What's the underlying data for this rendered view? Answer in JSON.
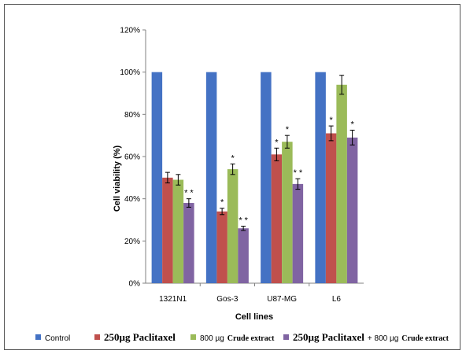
{
  "chart_data": {
    "type": "bar",
    "title": "",
    "xlabel": "Cell lines",
    "ylabel": "Cell viability (%)",
    "ylim": [
      0,
      120
    ],
    "yticks": [
      "0%",
      "20%",
      "40%",
      "60%",
      "80%",
      "100%",
      "120%"
    ],
    "grid": false,
    "legend_position": "bottom",
    "categories": [
      "1321N1",
      "Gos-3",
      "U87-MG",
      "L6"
    ],
    "series": [
      {
        "name": "Control",
        "color": "#4472C4",
        "values": [
          100,
          100,
          100,
          100
        ],
        "errors": [
          0,
          0,
          0,
          0
        ],
        "annotations": [
          "",
          "",
          "",
          ""
        ]
      },
      {
        "name": "250µg Paclitaxel",
        "color": "#C0504D",
        "values": [
          50,
          34,
          61,
          71
        ],
        "errors": [
          2.5,
          1.5,
          3,
          3.5
        ],
        "annotations": [
          "",
          "*",
          "*",
          "*"
        ]
      },
      {
        "name": "800 µg Crude extract",
        "color": "#9BBB59",
        "values": [
          49,
          54,
          67,
          94
        ],
        "errors": [
          2.5,
          2.5,
          3,
          4.5
        ],
        "annotations": [
          "",
          "*",
          "*",
          ""
        ]
      },
      {
        "name": "250µg Paclitaxel + 800 µg Crude extract",
        "color": "#8064A2",
        "values": [
          38,
          26,
          47,
          69
        ],
        "errors": [
          2,
          1,
          2.5,
          3.5
        ],
        "annotations": [
          "* *",
          "* *",
          "* *",
          "*"
        ]
      }
    ],
    "legend": [
      {
        "parts": [
          {
            "text": "Control",
            "style": "small"
          }
        ]
      },
      {
        "parts": [
          {
            "text": "250µg Paclitaxel",
            "style": "big"
          }
        ]
      },
      {
        "parts": [
          {
            "text": "800 µg",
            "style": "small"
          },
          {
            "text": "Crude extract",
            "style": "serif"
          }
        ]
      },
      {
        "parts": [
          {
            "text": "250µg Paclitaxel",
            "style": "big"
          },
          {
            "text": "+ 800 µg",
            "style": "small"
          },
          {
            "text": "Crude extract",
            "style": "serif"
          }
        ]
      }
    ]
  }
}
